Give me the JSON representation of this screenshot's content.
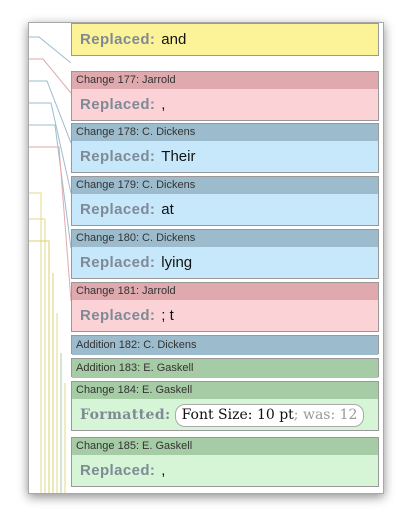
{
  "cards": [
    {
      "kind": "yellow-partial",
      "keyword": "Replaced:",
      "value": "and"
    },
    {
      "kind": "red",
      "header": "Change 177: Jarrold",
      "keyword": "Replaced:",
      "value": ","
    },
    {
      "kind": "blue",
      "header": "Change 178: C. Dickens",
      "keyword": "Replaced:",
      "value": "Their"
    },
    {
      "kind": "blue",
      "header": "Change 179: C. Dickens",
      "keyword": "Replaced:",
      "value": "at"
    },
    {
      "kind": "blue",
      "header": "Change 180: C. Dickens",
      "keyword": "Replaced:",
      "value": "lying"
    },
    {
      "kind": "red",
      "header": "Change 181: Jarrold",
      "keyword": "Replaced:",
      "value": "; t"
    },
    {
      "kind": "blue-single",
      "header": "Addition 182: C. Dickens"
    },
    {
      "kind": "green-single",
      "header": "Addition 183: E. Gaskell"
    },
    {
      "kind": "green-format",
      "header": "Change 184: E. Gaskell",
      "keyword": "Formatted:",
      "value": "Font Size: 10 pt",
      "was": "; was: 12"
    },
    {
      "kind": "green",
      "header": "Change 185: E. Gaskell",
      "keyword": "Replaced:",
      "value": ","
    }
  ],
  "colors": {
    "red_header": "#dfa9ae",
    "red_body": "#fbd3d7",
    "blue_header": "#9cbccd",
    "blue_body": "#c7e8fa",
    "green_header": "#a6cca6",
    "green_body": "#d6f4d6",
    "yellow_body": "#fcf398"
  }
}
